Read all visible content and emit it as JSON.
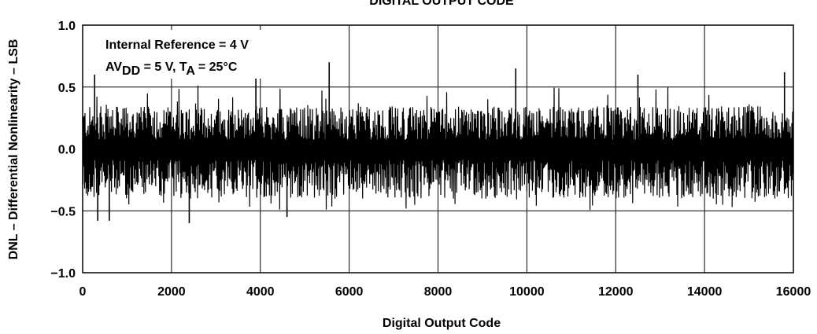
{
  "chart_data": {
    "type": "line",
    "title": "DIGITAL OUTPUT CODE",
    "xlabel": "Digital Output Code",
    "ylabel": "DNL – Differential Nonlinearity – LSB",
    "xlim": [
      0,
      16000
    ],
    "ylim": [
      -1.0,
      1.0
    ],
    "x_ticks": [
      0,
      2000,
      4000,
      6000,
      8000,
      10000,
      12000,
      14000,
      16000
    ],
    "x_tick_labels": [
      "0",
      "2000",
      "4000",
      "6000",
      "8000",
      "10000",
      "12000",
      "14000",
      "16000"
    ],
    "y_ticks": [
      1.0,
      0.5,
      0.0,
      -0.5,
      -1.0
    ],
    "y_tick_labels": [
      "1.0",
      "0.5",
      "0.0",
      "−0.5",
      "−1.0"
    ],
    "grid": true,
    "annotations": {
      "line1": "Internal Reference = 4 V",
      "line2_prefix": "AV",
      "line2_sub1": "DD",
      "line2_mid": " = 5 V, T",
      "line2_sub2": "A",
      "line2_suffix": " = 25°C"
    },
    "series": [
      {
        "band_upper_typical": 0.3,
        "band_lower_typical": -0.35,
        "peaks": [
          {
            "x": 270,
            "y": 0.6
          },
          {
            "x": 2400,
            "y": -0.6
          },
          {
            "x": 3900,
            "y": 0.6
          },
          {
            "x": 5550,
            "y": 0.7
          },
          {
            "x": 9750,
            "y": 0.65
          },
          {
            "x": 12500,
            "y": 0.6
          },
          {
            "x": 15800,
            "y": 0.62
          },
          {
            "x": 340,
            "y": -0.58
          },
          {
            "x": 600,
            "y": -0.58
          },
          {
            "x": 4600,
            "y": -0.55
          }
        ]
      }
    ]
  }
}
